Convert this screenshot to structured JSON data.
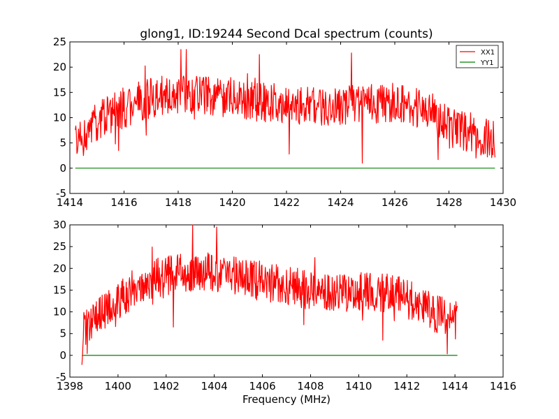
{
  "figure": {
    "title": "glong1, ID:19244 Second Dcal spectrum (counts)",
    "xlabel": "Frequency (MHz)"
  },
  "colors": {
    "xx1": "#ff0000",
    "yy1": "#008000",
    "axes": "#000000",
    "background": "#ffffff"
  },
  "chart_data": [
    {
      "type": "line",
      "title": "glong1, ID:19244 Second Dcal spectrum (counts)",
      "xlabel": "",
      "ylabel": "",
      "xlim": [
        1414,
        1430
      ],
      "ylim": [
        -5,
        25
      ],
      "xticks": [
        "1414",
        "1416",
        "1418",
        "1420",
        "1422",
        "1424",
        "1426",
        "1428",
        "1430"
      ],
      "yticks": [
        "-5",
        "0",
        "5",
        "10",
        "15",
        "20",
        "25"
      ],
      "legend": {
        "placement": "top-right",
        "entries": [
          "XX1",
          "YY1"
        ]
      },
      "x_range": [
        1414.2,
        1429.7
      ],
      "series": [
        {
          "name": "XX1",
          "color": "#ff0000",
          "envelope": [
            [
              1414.2,
              6
            ],
            [
              1415.0,
              9
            ],
            [
              1416.0,
              12
            ],
            [
              1417.0,
              14
            ],
            [
              1418.0,
              15
            ],
            [
              1420.0,
              14
            ],
            [
              1422.0,
              12.5
            ],
            [
              1424.0,
              12.5
            ],
            [
              1426.0,
              13
            ],
            [
              1427.5,
              11
            ],
            [
              1428.0,
              8
            ],
            [
              1429.0,
              6.5
            ],
            [
              1429.7,
              5.5
            ]
          ],
          "noise": 3.5,
          "notable_values": [
            [
              1414.5,
              2.5
            ],
            [
              1415.8,
              3.5
            ],
            [
              1418.1,
              23.5
            ],
            [
              1418.3,
              23.5
            ],
            [
              1421.0,
              22.5
            ],
            [
              1424.4,
              22.8
            ],
            [
              1424.8,
              1.0
            ],
            [
              1422.1,
              2.8
            ],
            [
              1427.6,
              1.7
            ],
            [
              1429.0,
              2.0
            ]
          ]
        },
        {
          "name": "YY1",
          "color": "#008000",
          "constant": 0,
          "x_range": [
            1414.2,
            1429.7
          ]
        }
      ]
    },
    {
      "type": "line",
      "title": "",
      "xlabel": "Frequency (MHz)",
      "ylabel": "",
      "xlim": [
        1398,
        1416
      ],
      "ylim": [
        -5,
        30
      ],
      "xticks": [
        "1398",
        "1400",
        "1402",
        "1404",
        "1406",
        "1408",
        "1410",
        "1412",
        "1414",
        "1416"
      ],
      "yticks": [
        "-5",
        "0",
        "5",
        "10",
        "15",
        "20",
        "25",
        "30"
      ],
      "x_range": [
        1398.5,
        1414.1
      ],
      "series": [
        {
          "name": "XX1",
          "color": "#ff0000",
          "envelope": [
            [
              1398.5,
              6
            ],
            [
              1399.0,
              8
            ],
            [
              1400.0,
              12
            ],
            [
              1401.0,
              17
            ],
            [
              1402.0,
              18.5
            ],
            [
              1403.0,
              19
            ],
            [
              1404.0,
              19
            ],
            [
              1406.0,
              17
            ],
            [
              1408.0,
              15
            ],
            [
              1410.0,
              14.5
            ],
            [
              1411.5,
              14
            ],
            [
              1412.5,
              12
            ],
            [
              1413.0,
              10
            ],
            [
              1414.1,
              8
            ]
          ],
          "noise": 4,
          "notable_values": [
            [
              1398.52,
              -0.5
            ],
            [
              1403.1,
              30
            ],
            [
              1404.1,
              29.5
            ],
            [
              1411.0,
              3.5
            ],
            [
              1402.3,
              6.5
            ],
            [
              1413.6,
              5
            ]
          ]
        },
        {
          "name": "YY1",
          "color": "#008000",
          "constant": 0,
          "x_range": [
            1398.5,
            1414.1
          ]
        }
      ]
    }
  ]
}
